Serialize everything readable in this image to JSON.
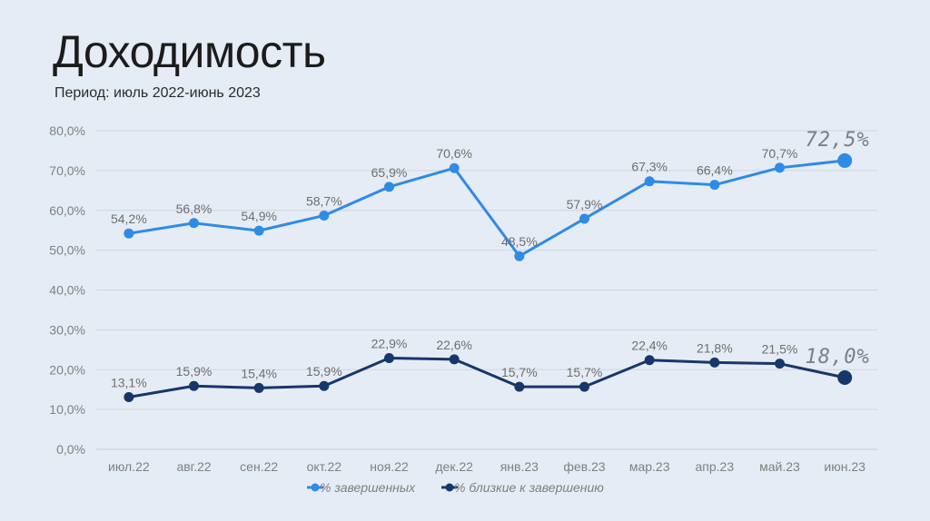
{
  "header": {
    "title": "Доходимость",
    "subtitle": "Период: июль 2022-июнь 2023"
  },
  "chart_data": {
    "type": "line",
    "title": "",
    "xlabel": "",
    "ylabel": "",
    "categories": [
      "июл.22",
      "авг.22",
      "сен.22",
      "окт.22",
      "ноя.22",
      "дек.22",
      "янв.23",
      "фев.23",
      "мар.23",
      "апр.23",
      "май.23",
      "июн.23"
    ],
    "ylim": [
      0,
      80
    ],
    "yticks": [
      0,
      10,
      20,
      30,
      40,
      50,
      60,
      70,
      80
    ],
    "ytick_labels": [
      "0,0%",
      "10,0%",
      "20,0%",
      "30,0%",
      "40,0%",
      "50,0%",
      "60,0%",
      "70,0%",
      "80,0%"
    ],
    "grid": true,
    "legend_position": "bottom",
    "series": [
      {
        "name": "% завершенных",
        "color": "#2f8be6",
        "values": [
          54.2,
          56.8,
          54.9,
          58.7,
          65.9,
          70.6,
          48.5,
          57.9,
          67.3,
          66.4,
          70.7,
          72.5
        ],
        "labels": [
          "54,2%",
          "56,8%",
          "54,9%",
          "58,7%",
          "65,9%",
          "70,6%",
          "48,5%",
          "57,9%",
          "67,3%",
          "66,4%",
          "70,7%",
          "72,5%"
        ]
      },
      {
        "name": "% близкие к завершению",
        "color": "#17376b",
        "values": [
          13.1,
          15.9,
          15.4,
          15.9,
          22.9,
          22.6,
          15.7,
          15.7,
          22.4,
          21.8,
          21.5,
          18.0
        ],
        "labels": [
          "13,1%",
          "15,9%",
          "15,4%",
          "15,9%",
          "22,9%",
          "22,6%",
          "15,7%",
          "15,7%",
          "22,4%",
          "21,8%",
          "21,5%",
          "18,0%"
        ]
      }
    ]
  }
}
